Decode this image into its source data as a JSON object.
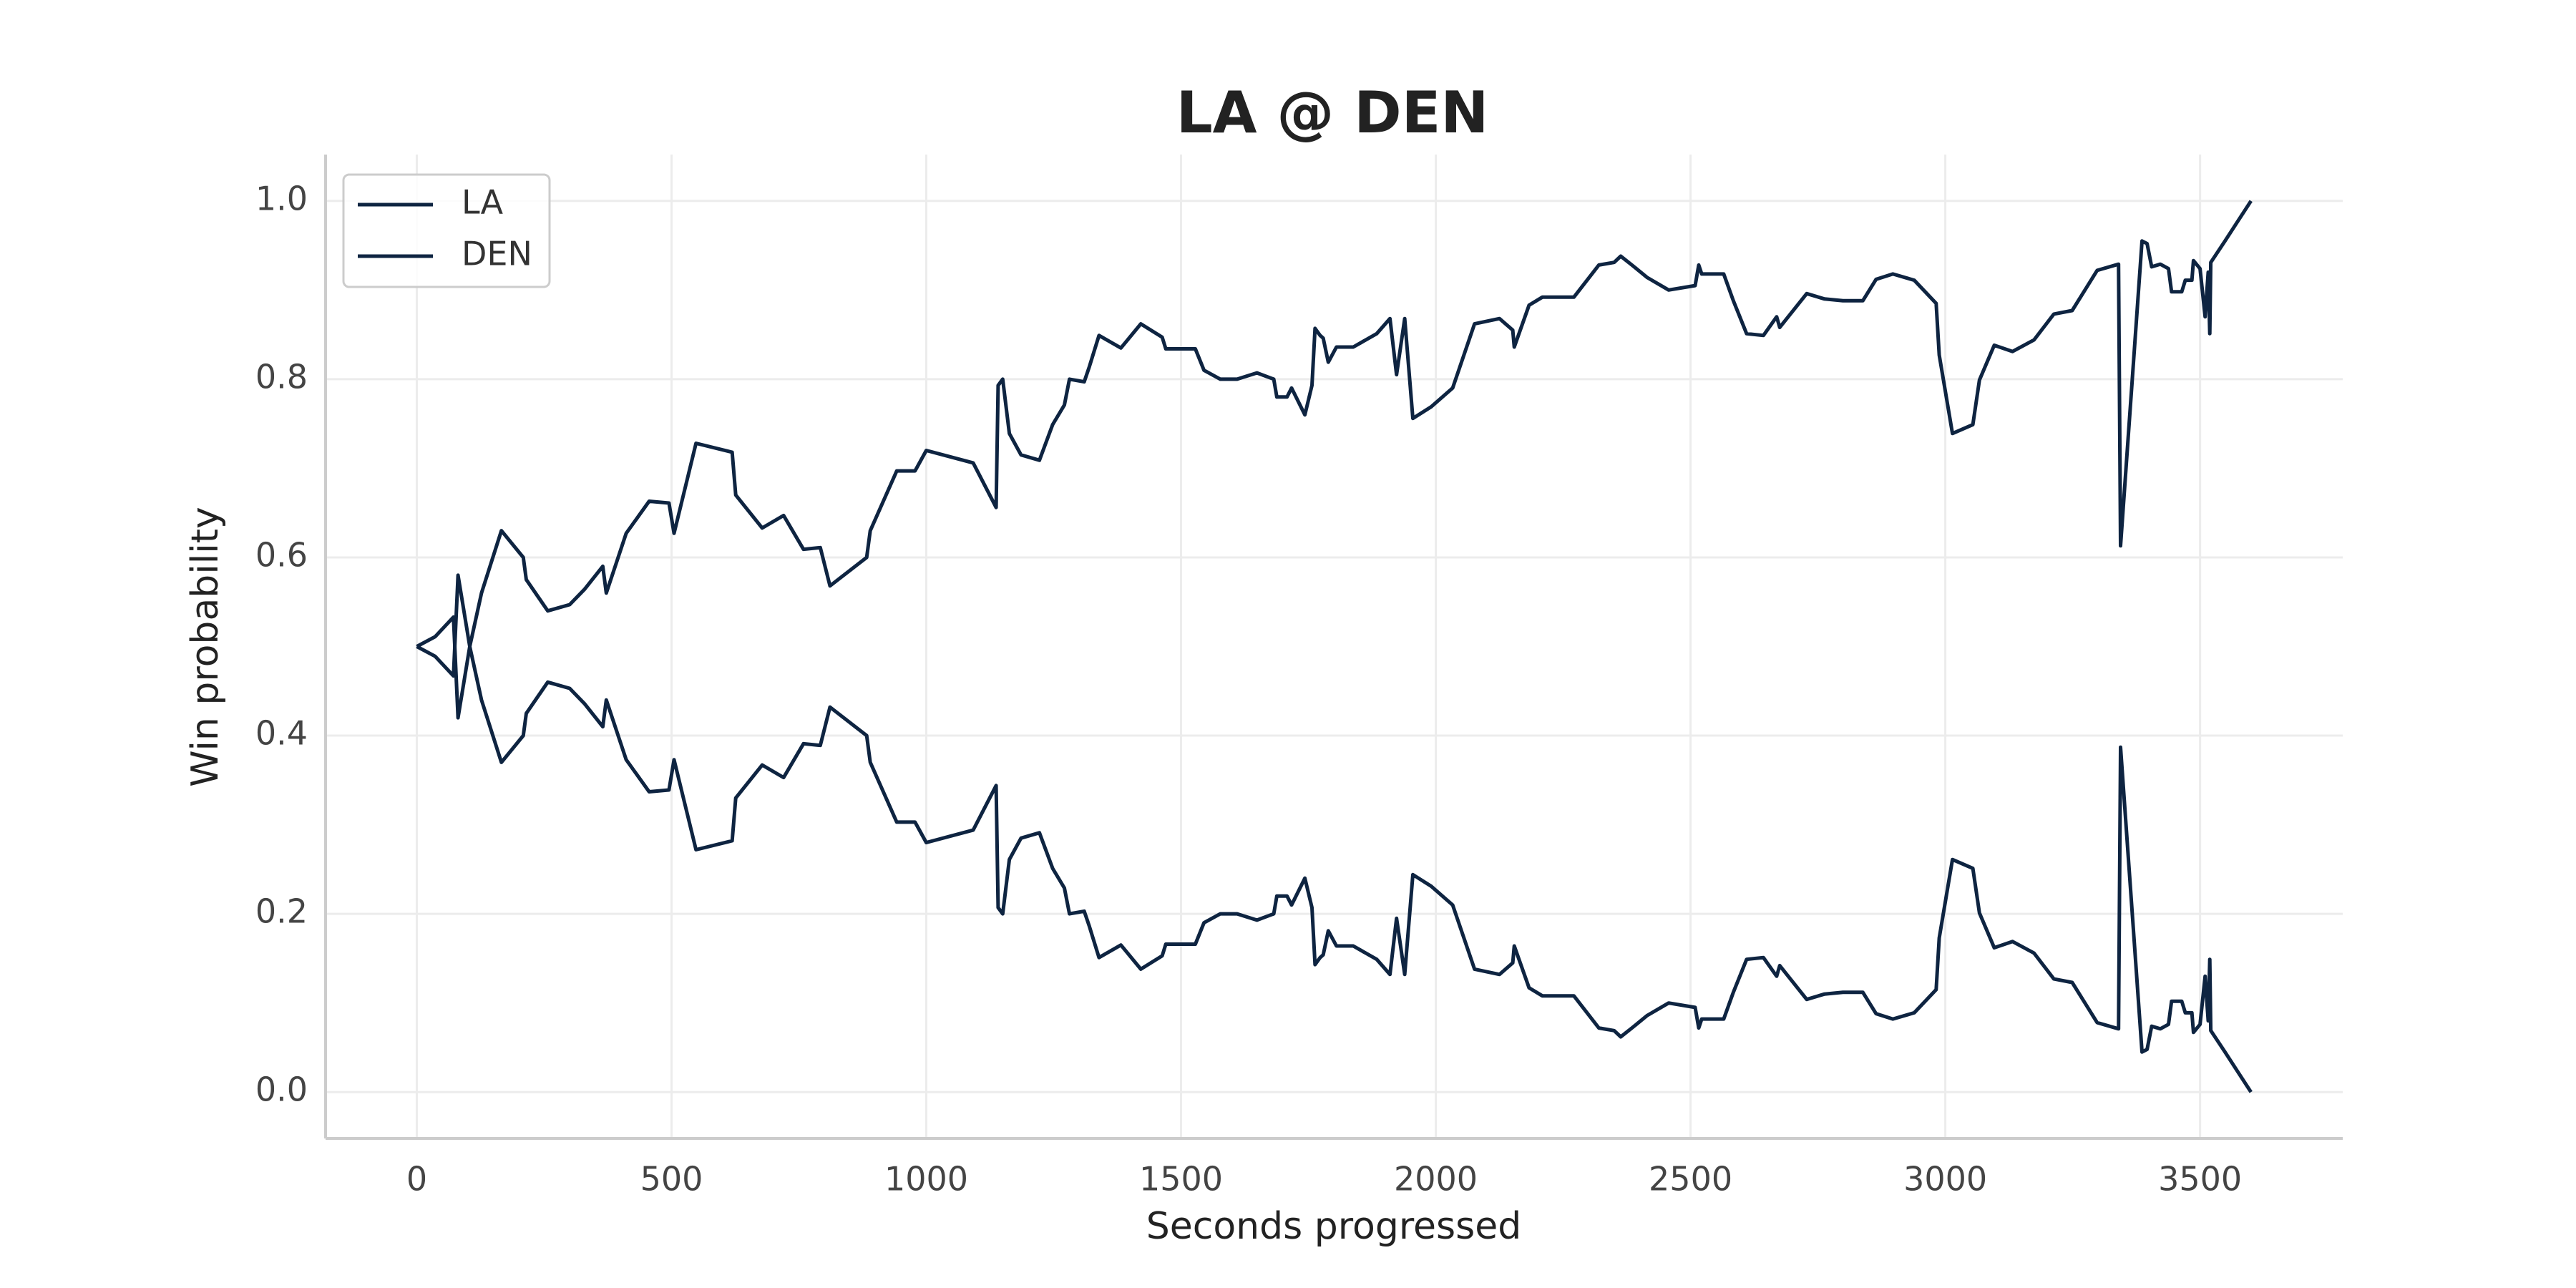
{
  "chart_data": {
    "type": "line",
    "title": "LA @ DEN",
    "xlabel": "Seconds progressed",
    "ylabel": "Win probability",
    "x": [
      0,
      36,
      72,
      81,
      104,
      127,
      166,
      209,
      215,
      257,
      300,
      329,
      365,
      372,
      411,
      456,
      495,
      505,
      548,
      619,
      626,
      678,
      720,
      759,
      792,
      811,
      883,
      890,
      942,
      978,
      1000,
      1092,
      1137,
      1141,
      1150,
      1163,
      1186,
      1222,
      1248,
      1271,
      1281,
      1310,
      1320,
      1339,
      1382,
      1421,
      1463,
      1470,
      1528,
      1545,
      1577,
      1610,
      1649,
      1682,
      1688,
      1708,
      1717,
      1743,
      1757,
      1763,
      1773,
      1779,
      1789,
      1805,
      1838,
      1884,
      1910,
      1923,
      1939,
      1955,
      1991,
      2033,
      2076,
      2125,
      2151,
      2154,
      2183,
      2209,
      2271,
      2320,
      2350,
      2363,
      2385,
      2415,
      2457,
      2509,
      2516,
      2522,
      2565,
      2584,
      2610,
      2643,
      2669,
      2675,
      2728,
      2763,
      2799,
      2838,
      2864,
      2897,
      2939,
      2982,
      2988,
      3014,
      3054,
      3067,
      3096,
      3132,
      3174,
      3213,
      3249,
      3298,
      3340,
      3344,
      3386,
      3396,
      3405,
      3422,
      3438,
      3444,
      3464,
      3471,
      3484,
      3487,
      3500,
      3510,
      3516,
      3519,
      3521,
      3549,
      3575,
      3600
    ],
    "series": [
      {
        "name": "LA",
        "color": "#0e2441",
        "values": [
          0.5,
          0.489,
          0.467,
          0.58,
          0.5,
          0.44,
          0.37,
          0.4,
          0.425,
          0.46,
          0.453,
          0.436,
          0.41,
          0.44,
          0.373,
          0.337,
          0.339,
          0.373,
          0.272,
          0.282,
          0.33,
          0.367,
          0.353,
          0.391,
          0.389,
          0.432,
          0.4,
          0.37,
          0.303,
          0.303,
          0.28,
          0.294,
          0.344,
          0.207,
          0.2,
          0.261,
          0.285,
          0.291,
          0.251,
          0.229,
          0.2,
          0.203,
          0.186,
          0.151,
          0.165,
          0.138,
          0.153,
          0.166,
          0.166,
          0.19,
          0.2,
          0.2,
          0.193,
          0.2,
          0.22,
          0.22,
          0.21,
          0.24,
          0.207,
          0.143,
          0.151,
          0.154,
          0.181,
          0.164,
          0.164,
          0.149,
          0.132,
          0.195,
          0.132,
          0.244,
          0.231,
          0.21,
          0.138,
          0.132,
          0.145,
          0.164,
          0.117,
          0.108,
          0.108,
          0.072,
          0.069,
          0.062,
          0.072,
          0.086,
          0.1,
          0.095,
          0.072,
          0.082,
          0.082,
          0.112,
          0.149,
          0.151,
          0.13,
          0.142,
          0.104,
          0.11,
          0.112,
          0.112,
          0.088,
          0.082,
          0.089,
          0.115,
          0.173,
          0.261,
          0.251,
          0.201,
          0.162,
          0.169,
          0.156,
          0.127,
          0.123,
          0.078,
          0.071,
          0.387,
          0.045,
          0.048,
          0.074,
          0.071,
          0.076,
          0.102,
          0.102,
          0.089,
          0.089,
          0.067,
          0.076,
          0.13,
          0.08,
          0.149,
          0.069,
          0.045,
          0.022,
          0.0
        ]
      },
      {
        "name": "DEN",
        "color": "#0e2441",
        "values": [
          0.5,
          0.511,
          0.533,
          0.42,
          0.5,
          0.56,
          0.63,
          0.6,
          0.575,
          0.54,
          0.547,
          0.564,
          0.59,
          0.56,
          0.627,
          0.663,
          0.661,
          0.627,
          0.728,
          0.718,
          0.67,
          0.633,
          0.647,
          0.609,
          0.611,
          0.568,
          0.6,
          0.63,
          0.697,
          0.697,
          0.72,
          0.706,
          0.656,
          0.793,
          0.8,
          0.739,
          0.715,
          0.709,
          0.749,
          0.771,
          0.8,
          0.797,
          0.814,
          0.849,
          0.835,
          0.862,
          0.847,
          0.834,
          0.834,
          0.81,
          0.8,
          0.8,
          0.807,
          0.8,
          0.78,
          0.78,
          0.79,
          0.76,
          0.793,
          0.857,
          0.849,
          0.846,
          0.819,
          0.836,
          0.836,
          0.851,
          0.868,
          0.805,
          0.868,
          0.756,
          0.769,
          0.79,
          0.862,
          0.868,
          0.855,
          0.836,
          0.883,
          0.892,
          0.892,
          0.928,
          0.931,
          0.938,
          0.928,
          0.914,
          0.9,
          0.905,
          0.928,
          0.918,
          0.918,
          0.888,
          0.851,
          0.849,
          0.87,
          0.858,
          0.896,
          0.89,
          0.888,
          0.888,
          0.912,
          0.918,
          0.911,
          0.885,
          0.827,
          0.739,
          0.749,
          0.799,
          0.838,
          0.831,
          0.844,
          0.873,
          0.877,
          0.922,
          0.929,
          0.613,
          0.955,
          0.952,
          0.926,
          0.929,
          0.924,
          0.898,
          0.898,
          0.911,
          0.911,
          0.933,
          0.924,
          0.87,
          0.92,
          0.851,
          0.931,
          0.955,
          0.978,
          1.0
        ]
      }
    ],
    "xlim": [
      -179,
      3780
    ],
    "xticks": [
      0,
      500,
      1000,
      1500,
      2000,
      2500,
      3000,
      3500
    ],
    "ylim": [
      -0.052,
      1.052
    ],
    "yticks": [
      {
        "value": 0,
        "label": "0.0"
      },
      0.2,
      0.4,
      0.6,
      0.8,
      {
        "value": 1,
        "label": "1.0"
      }
    ],
    "grid": true,
    "legend": "upper left"
  }
}
